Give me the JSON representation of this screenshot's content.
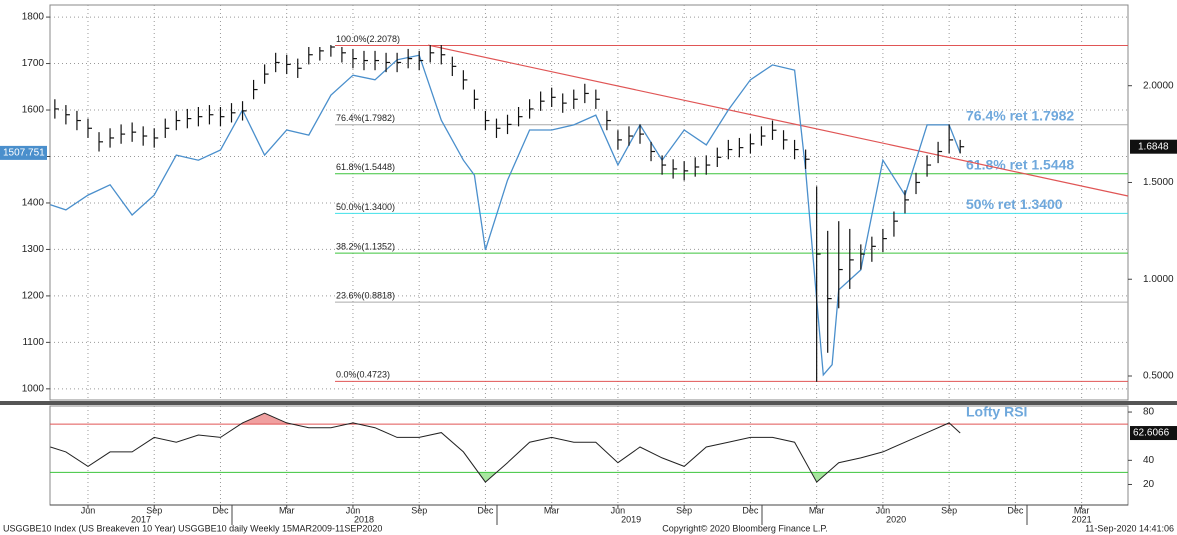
{
  "chart_data": [
    {
      "type": "ohlc",
      "xlim": [
        3.28,
        52.1
      ],
      "xticks": [
        {
          "value": 5,
          "label": "Jun"
        },
        {
          "value": 8,
          "label": "Sep"
        },
        {
          "value": 11,
          "label": "Dec"
        },
        {
          "value": 14,
          "label": "Mar"
        },
        {
          "value": 17,
          "label": "Jun"
        },
        {
          "value": 20,
          "label": "Sep"
        },
        {
          "value": 23,
          "label": "Dec"
        },
        {
          "value": 26,
          "label": "Mar"
        },
        {
          "value": 29,
          "label": "Jun"
        },
        {
          "value": 32,
          "label": "Sep"
        },
        {
          "value": 35,
          "label": "Dec"
        },
        {
          "value": 38,
          "label": "Mar"
        },
        {
          "value": 41,
          "label": "Jun"
        },
        {
          "value": 44,
          "label": "Sep"
        },
        {
          "value": 47,
          "label": "Dec"
        },
        {
          "value": 50,
          "label": "Mar"
        }
      ],
      "xyears": [
        {
          "value": 7.4,
          "label": "2017"
        },
        {
          "value": 17.5,
          "label": "2018"
        },
        {
          "value": 29.6,
          "label": "2019"
        },
        {
          "value": 41.6,
          "label": "2020"
        },
        {
          "value": 50,
          "label": "2021"
        }
      ],
      "ylim": [
        976,
        1826
      ],
      "yticks": [
        1000,
        1100,
        1200,
        1300,
        1400,
        1500,
        1600,
        1700,
        1800
      ],
      "y2lim": [
        0.376,
        2.417
      ],
      "y2ticks": [
        {
          "value": 0.5,
          "label": "0.5000"
        },
        {
          "value": 1,
          "label": "1.0000"
        },
        {
          "value": 1.5,
          "label": "1.5000"
        },
        {
          "value": 2,
          "label": "2.0000"
        }
      ],
      "grid": true,
      "line": {
        "color": "#4a8fcc",
        "x": [
          3.3,
          4,
          5,
          6,
          7,
          8,
          9,
          10,
          11,
          12,
          13,
          14,
          15,
          16,
          17,
          18,
          19,
          20,
          21,
          22,
          22.5,
          23,
          24,
          25,
          26,
          27,
          28,
          29,
          30,
          31,
          32,
          33,
          34,
          35,
          36,
          37,
          37.5,
          38,
          38.3,
          38.7,
          39,
          40,
          41,
          42,
          43,
          44,
          44.5
        ],
        "values": [
          1396,
          1385,
          1417,
          1439,
          1374,
          1417,
          1503,
          1492,
          1514,
          1600,
          1503,
          1557,
          1546,
          1632,
          1675,
          1665,
          1708,
          1718,
          1578,
          1492,
          1460,
          1299,
          1449,
          1557,
          1557,
          1568,
          1589,
          1482,
          1568,
          1492,
          1557,
          1525,
          1600,
          1665,
          1697,
          1686,
          1471,
          1191,
          1030,
          1052,
          1213,
          1256,
          1492,
          1417,
          1568,
          1568,
          1507.751
        ]
      },
      "bars": {
        "color": "#111",
        "axis": "y2",
        "x": [
          3.5,
          4,
          4.5,
          5,
          5.5,
          6,
          6.5,
          7,
          7.5,
          8,
          8.5,
          9,
          9.5,
          10,
          10.5,
          11,
          11.5,
          12,
          12.5,
          13,
          13.5,
          14,
          14.5,
          15,
          15.5,
          16,
          16.5,
          17,
          17.5,
          18,
          18.5,
          19,
          19.5,
          20,
          20.5,
          21,
          21.5,
          22,
          22.5,
          23,
          23.5,
          24,
          24.5,
          25,
          25.5,
          26,
          26.5,
          27,
          27.5,
          28,
          28.5,
          29,
          29.5,
          30,
          30.5,
          31,
          31.5,
          32,
          32.5,
          33,
          33.5,
          34,
          34.5,
          35,
          35.5,
          36,
          36.5,
          37,
          37.5,
          38,
          38.5,
          39,
          39.5,
          40,
          40.5,
          41,
          41.5,
          42,
          42.5,
          43,
          43.5,
          44,
          44.5
        ],
        "high": [
          1.93,
          1.9,
          1.87,
          1.83,
          1.76,
          1.78,
          1.8,
          1.81,
          1.79,
          1.78,
          1.83,
          1.87,
          1.88,
          1.89,
          1.9,
          1.89,
          1.91,
          1.92,
          2.03,
          2.11,
          2.17,
          2.16,
          2.14,
          2.2,
          2.2,
          2.21,
          2.2,
          2.19,
          2.18,
          2.18,
          2.17,
          2.17,
          2.19,
          2.18,
          2.21,
          2.21,
          2.15,
          2.08,
          1.98,
          1.87,
          1.83,
          1.85,
          1.89,
          1.93,
          1.97,
          1.99,
          1.96,
          1.98,
          2.01,
          1.98,
          1.87,
          1.77,
          1.79,
          1.8,
          1.71,
          1.64,
          1.62,
          1.61,
          1.63,
          1.64,
          1.68,
          1.72,
          1.73,
          1.75,
          1.79,
          1.82,
          1.77,
          1.72,
          1.67,
          1.48,
          1.25,
          1.3,
          1.26,
          1.18,
          1.22,
          1.26,
          1.35,
          1.46,
          1.55,
          1.64,
          1.71,
          1.8,
          1.72
        ],
        "low": [
          1.83,
          1.8,
          1.77,
          1.73,
          1.66,
          1.68,
          1.7,
          1.71,
          1.69,
          1.68,
          1.73,
          1.77,
          1.78,
          1.79,
          1.8,
          1.79,
          1.81,
          1.82,
          1.93,
          2.01,
          2.07,
          2.06,
          2.04,
          2.11,
          2.13,
          2.15,
          2.12,
          2.09,
          2.08,
          2.08,
          2.07,
          2.07,
          2.09,
          2.08,
          2.12,
          2.11,
          2.05,
          1.98,
          1.88,
          1.77,
          1.73,
          1.75,
          1.79,
          1.83,
          1.87,
          1.89,
          1.86,
          1.88,
          1.91,
          1.88,
          1.77,
          1.67,
          1.69,
          1.7,
          1.61,
          1.54,
          1.52,
          1.51,
          1.53,
          1.54,
          1.58,
          1.62,
          1.63,
          1.65,
          1.69,
          1.72,
          1.67,
          1.62,
          1.57,
          0.47,
          0.62,
          0.85,
          0.95,
          1.05,
          1.09,
          1.14,
          1.22,
          1.34,
          1.44,
          1.53,
          1.6,
          1.65,
          1.65
        ],
        "close": [
          1.88,
          1.85,
          1.82,
          1.78,
          1.71,
          1.73,
          1.75,
          1.76,
          1.74,
          1.73,
          1.78,
          1.82,
          1.83,
          1.84,
          1.85,
          1.84,
          1.86,
          1.87,
          1.98,
          2.06,
          2.12,
          2.11,
          2.09,
          2.16,
          2.18,
          2.2,
          2.17,
          2.14,
          2.13,
          2.13,
          2.12,
          2.12,
          2.14,
          2.13,
          2.17,
          2.16,
          2.1,
          2.03,
          1.93,
          1.82,
          1.78,
          1.8,
          1.84,
          1.88,
          1.92,
          1.94,
          1.91,
          1.93,
          1.96,
          1.93,
          1.82,
          1.72,
          1.74,
          1.75,
          1.66,
          1.59,
          1.57,
          1.56,
          1.58,
          1.59,
          1.63,
          1.67,
          1.68,
          1.7,
          1.74,
          1.77,
          1.72,
          1.67,
          1.62,
          1.13,
          0.9,
          1.05,
          1.1,
          1.13,
          1.17,
          1.21,
          1.3,
          1.41,
          1.5,
          1.59,
          1.66,
          1.72,
          1.6848
        ]
      },
      "fib": [
        {
          "value": 2.2078,
          "label": "100.0%(2.2078)",
          "color": "#e05555"
        },
        {
          "value": 1.7982,
          "label": "76.4%(1.7982)",
          "color": "#aaaaaa",
          "note": "76.4% ret 1.7982"
        },
        {
          "value": 1.5448,
          "label": "61.8%(1.5448)",
          "color": "#3cc43c",
          "note": "61.8% ret 1.5448"
        },
        {
          "value": 1.34,
          "label": "50.0%(1.3400)",
          "color": "#40e0e8",
          "note": "50% ret 1.3400"
        },
        {
          "value": 1.1352,
          "label": "38.2%(1.1352)",
          "color": "#3cc43c"
        },
        {
          "value": 0.8818,
          "label": "23.6%(0.8818)",
          "color": "#aaaaaa"
        },
        {
          "value": 0.4723,
          "label": "0.0%(0.4723)",
          "color": "#e05555"
        }
      ],
      "trendline": {
        "color": "#e05555",
        "x": [
          20.4,
          52.1
        ],
        "values": [
          2.21,
          1.43
        ]
      }
    },
    {
      "type": "line",
      "ylim": [
        3,
        85
      ],
      "yticks": [
        20,
        40,
        80
      ],
      "color": "#222",
      "x": [
        3.3,
        4,
        5,
        6,
        7,
        8,
        9,
        10,
        11,
        12,
        13,
        14,
        15,
        16,
        17,
        18,
        19,
        20,
        21,
        22,
        23,
        24,
        25,
        26,
        27,
        28,
        29,
        30,
        31,
        32,
        33,
        34,
        35,
        36,
        37,
        38,
        39,
        40,
        41,
        42,
        43,
        44,
        44.5
      ],
      "values": [
        51,
        47,
        35,
        47,
        47,
        59,
        55,
        61,
        59,
        71,
        79,
        71,
        67,
        67,
        71,
        67,
        59,
        59,
        63,
        47,
        22,
        38,
        55,
        59,
        55,
        55,
        38,
        51,
        42,
        35,
        51,
        55,
        59,
        59,
        55,
        22,
        38,
        42,
        47,
        55,
        63,
        71,
        62.6066
      ],
      "levels": [
        {
          "value": 70,
          "color": "#e05555"
        },
        {
          "value": 30,
          "color": "#3cc43c"
        }
      ],
      "annotation": "Lofty RSI"
    }
  ],
  "footer": {
    "left": "USGGBE10 Index (US Breakeven 10 Year) USGGBE10 daily  Weekly 15MAR2009-11SEP2020",
    "center": "Copyright© 2020 Bloomberg Finance L.P.",
    "right": "11-Sep-2020 14:41:06"
  }
}
